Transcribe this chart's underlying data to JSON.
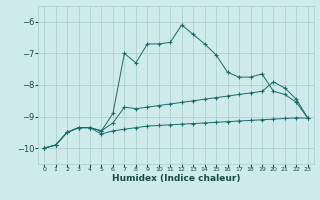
{
  "xlabel": "Humidex (Indice chaleur)",
  "bg_color": "#ceeaea",
  "grid_color": "#aacccc",
  "line_color": "#1a6b6b",
  "xlim": [
    -0.5,
    23.5
  ],
  "ylim": [
    -10.5,
    -5.5
  ],
  "yticks": [
    -10,
    -9,
    -8,
    -7,
    -6
  ],
  "xticks": [
    0,
    1,
    2,
    3,
    4,
    5,
    6,
    7,
    8,
    9,
    10,
    11,
    12,
    13,
    14,
    15,
    16,
    17,
    18,
    19,
    20,
    21,
    22,
    23
  ],
  "series1_x": [
    0,
    1,
    2,
    3,
    4,
    5,
    6,
    7,
    8,
    9,
    10,
    11,
    12,
    13,
    14,
    15,
    16,
    17,
    18,
    19,
    20,
    21,
    22,
    23
  ],
  "series1_y": [
    -10.0,
    -9.9,
    -9.5,
    -9.35,
    -9.35,
    -9.45,
    -8.9,
    -7.0,
    -7.3,
    -6.7,
    -6.7,
    -6.65,
    -6.1,
    -6.4,
    -6.7,
    -7.05,
    -7.6,
    -7.75,
    -7.75,
    -7.65,
    -8.2,
    -8.3,
    -8.55,
    -9.05
  ],
  "series2_x": [
    0,
    1,
    2,
    3,
    4,
    5,
    6,
    7,
    8,
    9,
    10,
    11,
    12,
    13,
    14,
    15,
    16,
    17,
    18,
    19,
    20,
    21,
    22,
    23
  ],
  "series2_y": [
    -10.0,
    -9.9,
    -9.5,
    -9.35,
    -9.35,
    -9.45,
    -9.2,
    -8.7,
    -8.75,
    -8.7,
    -8.65,
    -8.6,
    -8.55,
    -8.5,
    -8.45,
    -8.4,
    -8.35,
    -8.3,
    -8.25,
    -8.2,
    -7.9,
    -8.1,
    -8.45,
    -9.05
  ],
  "series3_x": [
    0,
    1,
    2,
    3,
    4,
    5,
    6,
    7,
    8,
    9,
    10,
    11,
    12,
    13,
    14,
    15,
    16,
    17,
    18,
    19,
    20,
    21,
    22,
    23
  ],
  "series3_y": [
    -10.0,
    -9.9,
    -9.5,
    -9.35,
    -9.35,
    -9.55,
    -9.45,
    -9.4,
    -9.35,
    -9.3,
    -9.28,
    -9.26,
    -9.24,
    -9.22,
    -9.2,
    -9.18,
    -9.16,
    -9.14,
    -9.12,
    -9.1,
    -9.08,
    -9.06,
    -9.04,
    -9.05
  ]
}
